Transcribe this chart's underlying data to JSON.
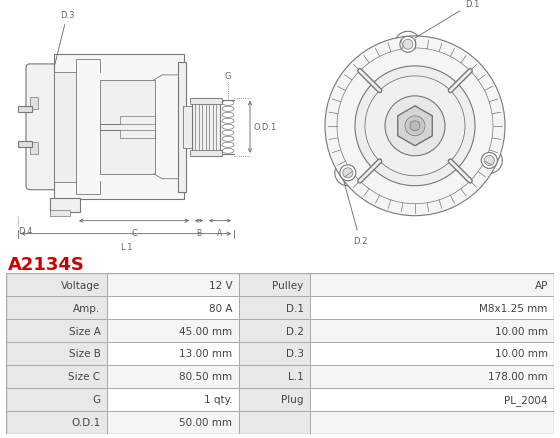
{
  "title": "A2134S",
  "title_color": "#cc0000",
  "bg_color": "#ffffff",
  "table_rows": [
    [
      "Voltage",
      "12 V",
      "Pulley",
      "AP"
    ],
    [
      "Amp.",
      "80 A",
      "D.1",
      "M8x1.25 mm"
    ],
    [
      "Size A",
      "45.00 mm",
      "D.2",
      "10.00 mm"
    ],
    [
      "Size B",
      "13.00 mm",
      "D.3",
      "10.00 mm"
    ],
    [
      "Size C",
      "80.50 mm",
      "L.1",
      "178.00 mm"
    ],
    [
      "G",
      "1 qty.",
      "Plug",
      "PL_2004"
    ],
    [
      "O.D.1",
      "50.00 mm",
      "",
      ""
    ]
  ],
  "border_color": "#aaaaaa",
  "row_bg_label": "#e8e8e8",
  "row_bg_odd": "#f5f5f5",
  "row_bg_even": "#ffffff",
  "text_color": "#444444",
  "font_size": 7.5,
  "line_color": "#777777",
  "dim_color": "#666666"
}
